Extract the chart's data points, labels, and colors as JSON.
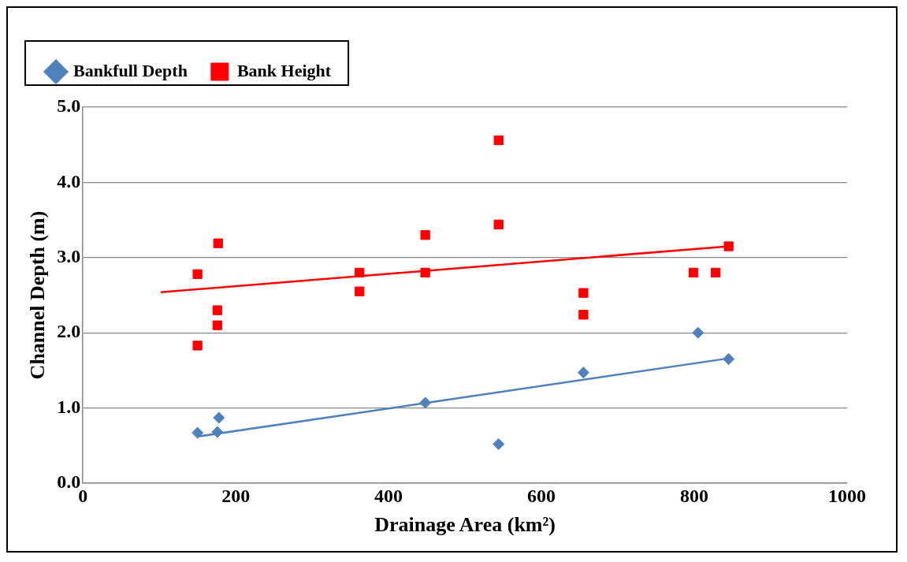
{
  "chart_data": {
    "type": "scatter",
    "xlabel": "Drainage Area (km²)",
    "ylabel": "Channel Depth (m)",
    "xlim": [
      0,
      1000
    ],
    "xticks": [
      0,
      200,
      400,
      600,
      800,
      1000
    ],
    "ylim": [
      0,
      5
    ],
    "yticks": [
      {
        "value": 0,
        "label": "0.0"
      },
      {
        "value": 1,
        "label": "1.0"
      },
      {
        "value": 2,
        "label": "2.0"
      },
      {
        "value": 3,
        "label": "3.0"
      },
      {
        "value": 4,
        "label": "4.0"
      },
      {
        "value": 5,
        "label": "5.0"
      }
    ],
    "grid": "y",
    "legend": "top left",
    "series": [
      {
        "name": "Bankfull Depth",
        "color": "#4f81bd",
        "marker": "diamond",
        "x": [
          150,
          176,
          178,
          448,
          544,
          655,
          805,
          845
        ],
        "values": [
          0.67,
          0.68,
          0.87,
          1.07,
          0.52,
          1.47,
          2.0,
          1.65
        ]
      },
      {
        "name": "Bank Height",
        "color": "#ff0000",
        "marker": "square",
        "x": [
          150,
          150,
          177,
          176,
          176,
          362,
          362,
          448,
          448,
          544,
          544,
          655,
          655,
          799,
          828,
          845
        ],
        "values": [
          2.78,
          1.83,
          3.19,
          2.3,
          2.1,
          2.8,
          2.55,
          3.3,
          2.8,
          4.56,
          3.44,
          2.53,
          2.24,
          2.8,
          2.8,
          3.15
        ]
      },
      {
        "type": "line",
        "color": "#ff0000",
        "x": [
          102,
          845
        ],
        "values": [
          2.54,
          3.15
        ]
      },
      {
        "type": "line",
        "color": "#4f81bd",
        "x": [
          150,
          845
        ],
        "values": [
          0.62,
          1.66
        ]
      }
    ]
  }
}
